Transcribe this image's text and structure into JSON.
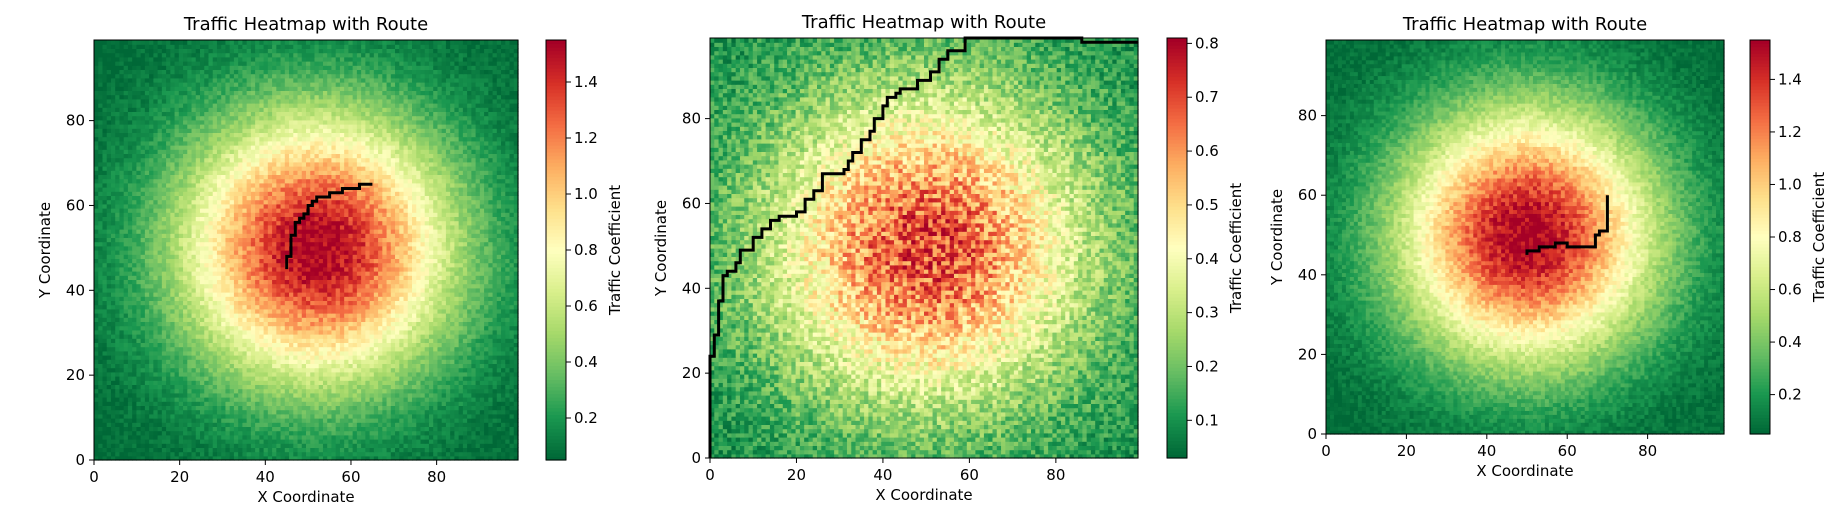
{
  "colormap": [
    "#006837",
    "#1a9850",
    "#66bd63",
    "#a6d96a",
    "#d9ef8b",
    "#ffffbf",
    "#fee08b",
    "#fdae61",
    "#f46d43",
    "#d73027",
    "#a50026"
  ],
  "chart_data": [
    {
      "type": "heatmap",
      "title": "Traffic Heatmap with Route",
      "xlabel": "X Coordinate",
      "ylabel": "Y Coordinate",
      "xlim": [
        0,
        99
      ],
      "ylim": [
        0,
        99
      ],
      "xticks": [
        0,
        20,
        40,
        60,
        80
      ],
      "yticks": [
        0,
        20,
        40,
        60,
        80
      ],
      "colorbar": {
        "label": "Traffic Coefficient",
        "vmin": 0.05,
        "vmax": 1.55,
        "ticks": [
          0.2,
          0.4,
          0.6,
          0.8,
          1.0,
          1.2,
          1.4
        ]
      },
      "field": {
        "center": [
          52,
          50
        ],
        "peak": 1.55,
        "base": 0.05,
        "spread": 22,
        "noise": 0.13
      },
      "route": [
        [
          45,
          45
        ],
        [
          45,
          48
        ],
        [
          46,
          48
        ],
        [
          46,
          51
        ],
        [
          46,
          53
        ],
        [
          47,
          53
        ],
        [
          47,
          56
        ],
        [
          48,
          56
        ],
        [
          48,
          57
        ],
        [
          49,
          57
        ],
        [
          49,
          58
        ],
        [
          50,
          58
        ],
        [
          50,
          60
        ],
        [
          51,
          60
        ],
        [
          51,
          61
        ],
        [
          52,
          61
        ],
        [
          52,
          62
        ],
        [
          55,
          62
        ],
        [
          55,
          63
        ],
        [
          58,
          63
        ],
        [
          58,
          64
        ],
        [
          62,
          64
        ],
        [
          62,
          65
        ],
        [
          65,
          65
        ]
      ]
    },
    {
      "type": "heatmap",
      "title": "Traffic Heatmap with Route",
      "xlabel": "X Coordinate",
      "ylabel": "Y Coordinate",
      "xlim": [
        0,
        99
      ],
      "ylim": [
        0,
        99
      ],
      "xticks": [
        0,
        20,
        40,
        60,
        80
      ],
      "yticks": [
        0,
        20,
        40,
        60,
        80
      ],
      "colorbar": {
        "label": "Traffic Coefficient",
        "vmin": 0.03,
        "vmax": 0.81,
        "ticks": [
          0.1,
          0.2,
          0.3,
          0.4,
          0.5,
          0.6,
          0.7,
          0.8
        ]
      },
      "field": {
        "center": [
          50,
          50
        ],
        "peak": 0.7,
        "base": 0.08,
        "spread": 26,
        "noise": 0.14
      },
      "route": [
        [
          0,
          0
        ],
        [
          0,
          24
        ],
        [
          1,
          24
        ],
        [
          1,
          29
        ],
        [
          2,
          29
        ],
        [
          2,
          37
        ],
        [
          3,
          37
        ],
        [
          3,
          43
        ],
        [
          4,
          43
        ],
        [
          4,
          44
        ],
        [
          6,
          44
        ],
        [
          6,
          46
        ],
        [
          7,
          46
        ],
        [
          7,
          49
        ],
        [
          10,
          49
        ],
        [
          10,
          52
        ],
        [
          12,
          52
        ],
        [
          12,
          54
        ],
        [
          14,
          54
        ],
        [
          14,
          56
        ],
        [
          16,
          56
        ],
        [
          16,
          57
        ],
        [
          20,
          57
        ],
        [
          20,
          58
        ],
        [
          22,
          58
        ],
        [
          22,
          61
        ],
        [
          24,
          61
        ],
        [
          24,
          63
        ],
        [
          26,
          63
        ],
        [
          26,
          67
        ],
        [
          31,
          67
        ],
        [
          31,
          68
        ],
        [
          32,
          68
        ],
        [
          32,
          70
        ],
        [
          33,
          70
        ],
        [
          33,
          72
        ],
        [
          35,
          72
        ],
        [
          35,
          75
        ],
        [
          37,
          75
        ],
        [
          37,
          77
        ],
        [
          38,
          77
        ],
        [
          38,
          80
        ],
        [
          40,
          80
        ],
        [
          40,
          83
        ],
        [
          41,
          83
        ],
        [
          41,
          85
        ],
        [
          43,
          85
        ],
        [
          43,
          86
        ],
        [
          44,
          86
        ],
        [
          44,
          87
        ],
        [
          48,
          87
        ],
        [
          48,
          89
        ],
        [
          51,
          89
        ],
        [
          51,
          91
        ],
        [
          53,
          91
        ],
        [
          53,
          94
        ],
        [
          55,
          94
        ],
        [
          55,
          96
        ],
        [
          59,
          96
        ],
        [
          59,
          99
        ],
        [
          86,
          99
        ],
        [
          86,
          98
        ],
        [
          99,
          98
        ]
      ]
    },
    {
      "type": "heatmap",
      "title": "Traffic Heatmap with Route",
      "xlabel": "X Coordinate",
      "ylabel": "Y Coordinate",
      "xlim": [
        0,
        99
      ],
      "ylim": [
        0,
        99
      ],
      "xticks": [
        0,
        20,
        40,
        60,
        80
      ],
      "yticks": [
        0,
        20,
        40,
        60,
        80
      ],
      "colorbar": {
        "label": "Traffic Coefficient",
        "vmin": 0.05,
        "vmax": 1.55,
        "ticks": [
          0.2,
          0.4,
          0.6,
          0.8,
          1.0,
          1.2,
          1.4
        ]
      },
      "field": {
        "center": [
          50,
          50
        ],
        "peak": 1.55,
        "base": 0.05,
        "spread": 22,
        "noise": 0.13
      },
      "route": [
        [
          50,
          45
        ],
        [
          50,
          46
        ],
        [
          53,
          46
        ],
        [
          53,
          47
        ],
        [
          57,
          47
        ],
        [
          57,
          48
        ],
        [
          60,
          48
        ],
        [
          60,
          47
        ],
        [
          67,
          47
        ],
        [
          67,
          50
        ],
        [
          68,
          50
        ],
        [
          68,
          51
        ],
        [
          70,
          51
        ],
        [
          70,
          60
        ]
      ]
    }
  ]
}
